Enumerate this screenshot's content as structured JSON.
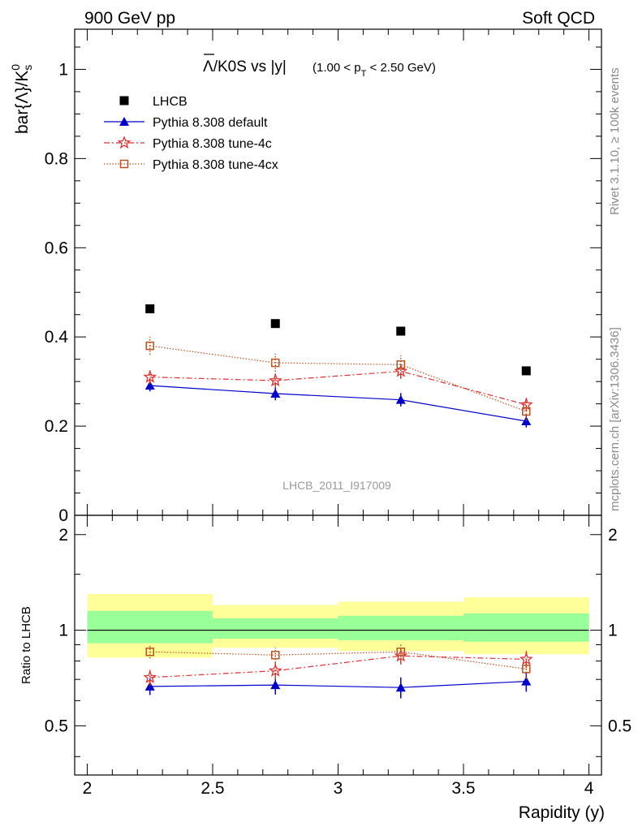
{
  "header": {
    "left": "900 GeV pp",
    "right": "Soft QCD"
  },
  "side_labels": {
    "rivet": "Rivet 3.1.10, ≥ 100k events",
    "mcplots": "mcplots.cern.ch [arXiv:1306.3436]"
  },
  "watermark": "LHCB_2011_I917009",
  "title": {
    "main": "Λ/K0S vs |y|",
    "cut_open": "(1.00 < p",
    "cut_sub": "T",
    "cut_close": " < 2.50 GeV)"
  },
  "legend_placement": "top-left",
  "colors": {
    "lhcb": "#000000",
    "default": "#0000cc",
    "tune4c": "#dd3333",
    "tune4cx": "#bb5522",
    "band_inner": "#99ff99",
    "band_outer": "#ffff99"
  },
  "chart_data": [
    {
      "type": "scatter",
      "panel": "main",
      "ylabel_main": "bar{Λ}/K",
      "ylabel_sup": "0",
      "ylabel_sub": "s",
      "xlim": [
        1.95,
        4.05
      ],
      "ylim": [
        0,
        1.09
      ],
      "yticks": [
        0,
        0.2,
        0.4,
        0.6,
        0.8,
        1
      ],
      "ytick_labels": [
        "0",
        "0.2",
        "0.4",
        "0.6",
        "0.8",
        "1"
      ],
      "x": [
        2.25,
        2.75,
        3.25,
        3.75
      ],
      "series": [
        {
          "name": "LHCB",
          "key": "lhcb",
          "marker": "square",
          "style": "none",
          "values": [
            0.463,
            0.43,
            0.413,
            0.324
          ],
          "errors": [
            0,
            0,
            0,
            0
          ]
        },
        {
          "name": "Pythia 8.308 default",
          "key": "default",
          "marker": "triangle",
          "style": "solid",
          "values": [
            0.291,
            0.273,
            0.259,
            0.211
          ],
          "errors": [
            0.013,
            0.015,
            0.015,
            0.014
          ]
        },
        {
          "name": "Pythia 8.308 tune-4c",
          "key": "tune4c",
          "marker": "star",
          "style": "dashdot",
          "values": [
            0.31,
            0.302,
            0.323,
            0.248
          ],
          "errors": [
            0.015,
            0.016,
            0.017,
            0.015
          ]
        },
        {
          "name": "Pythia 8.308 tune-4cx",
          "key": "tune4cx",
          "marker": "opensquare",
          "style": "dotted",
          "values": [
            0.38,
            0.342,
            0.338,
            0.233
          ],
          "errors": [
            0.02,
            0.02,
            0.02,
            0.02
          ]
        }
      ]
    },
    {
      "type": "scatter",
      "panel": "ratio",
      "ylabel": "Ratio to LHCB",
      "xlabel": "Rapidity (y)",
      "xlim": [
        1.95,
        4.05
      ],
      "ylim": [
        0.35,
        2.3
      ],
      "yticks": [
        0.5,
        1,
        2
      ],
      "ytick_labels": [
        "0.5",
        "1",
        "2"
      ],
      "xticks": [
        2,
        2.5,
        3,
        3.5,
        4
      ],
      "xtick_labels": [
        "2",
        "2.5",
        "3",
        "3.5",
        "4"
      ],
      "x": [
        2.25,
        2.75,
        3.25,
        3.75
      ],
      "bands": [
        {
          "x0": 2.0,
          "x1": 2.5,
          "inner": [
            0.91,
            1.15
          ],
          "outer": [
            0.82,
            1.3
          ]
        },
        {
          "x0": 2.5,
          "x1": 3.0,
          "inner": [
            0.94,
            1.09
          ],
          "outer": [
            0.88,
            1.2
          ]
        },
        {
          "x0": 3.0,
          "x1": 3.5,
          "inner": [
            0.93,
            1.11
          ],
          "outer": [
            0.86,
            1.23
          ]
        },
        {
          "x0": 3.5,
          "x1": 4.0,
          "inner": [
            0.92,
            1.13
          ],
          "outer": [
            0.84,
            1.27
          ]
        }
      ],
      "series": [
        {
          "name": "Pythia 8.308 default",
          "key": "default",
          "marker": "triangle",
          "style": "solid",
          "values": [
            0.665,
            0.672,
            0.66,
            0.69
          ],
          "errors": [
            0.04,
            0.045,
            0.05,
            0.05
          ]
        },
        {
          "name": "Pythia 8.308 tune-4c",
          "key": "tune4c",
          "marker": "star",
          "style": "dashdot",
          "values": [
            0.71,
            0.745,
            0.83,
            0.81
          ],
          "errors": [
            0.04,
            0.045,
            0.05,
            0.05
          ]
        },
        {
          "name": "Pythia 8.308 tune-4cx",
          "key": "tune4cx",
          "marker": "opensquare",
          "style": "dotted",
          "values": [
            0.855,
            0.835,
            0.855,
            0.755
          ],
          "errors": [
            0.04,
            0.045,
            0.05,
            0.05
          ]
        }
      ]
    }
  ]
}
